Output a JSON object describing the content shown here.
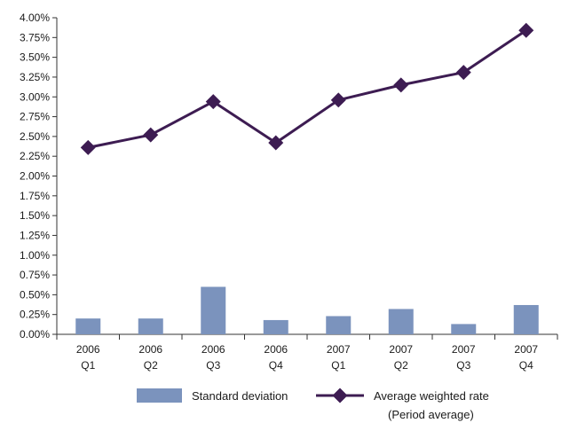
{
  "chart_data": {
    "type": "bar+line",
    "categories": [
      [
        "2006",
        "Q1"
      ],
      [
        "2006",
        "Q2"
      ],
      [
        "2006",
        "Q3"
      ],
      [
        "2006",
        "Q4"
      ],
      [
        "2007",
        "Q1"
      ],
      [
        "2007",
        "Q2"
      ],
      [
        "2007",
        "Q3"
      ],
      [
        "2007",
        "Q4"
      ]
    ],
    "series": [
      {
        "name": "Standard deviation",
        "kind": "bar",
        "color": "#7b93bd",
        "values": [
          0.2,
          0.2,
          0.6,
          0.18,
          0.23,
          0.32,
          0.13,
          0.37
        ]
      },
      {
        "name": "Average weighted rate",
        "name_note": "(Period average)",
        "kind": "line",
        "color": "#3d1c52",
        "values": [
          2.36,
          2.52,
          2.94,
          2.42,
          2.96,
          3.15,
          3.31,
          3.84
        ]
      }
    ],
    "ylim": [
      0,
      4
    ],
    "yticks": [
      "0.00%",
      "0.25%",
      "0.50%",
      "0.75%",
      "1.00%",
      "1.25%",
      "1.50%",
      "1.75%",
      "2.00%",
      "2.25%",
      "2.50%",
      "2.75%",
      "3.00%",
      "3.25%",
      "3.50%",
      "3.75%",
      "4.00%"
    ],
    "grid": false,
    "legend": "bottom",
    "title": "",
    "xlabel": "",
    "ylabel": ""
  }
}
